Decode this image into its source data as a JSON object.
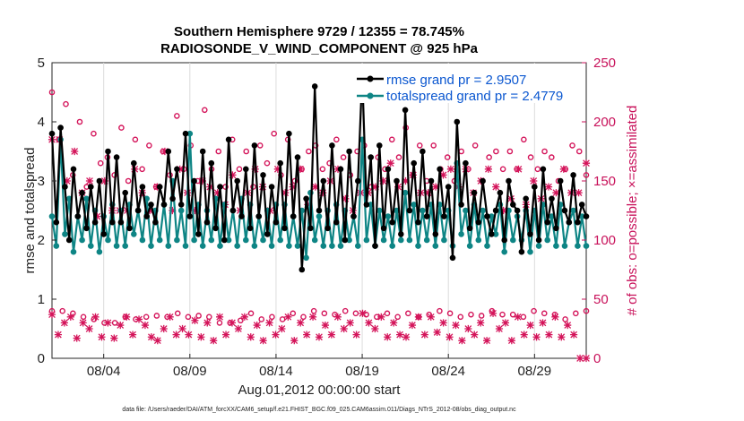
{
  "chart_data": {
    "type": "line",
    "title_line1": "Southern Hemisphere 9729 / 12355 = 78.745%",
    "title_line2": "RADIOSONDE_V_WIND_COMPONENT @ 925 hPa",
    "xlabel": "Aug.01,2012 00:00:00 start",
    "ylabel_left": "rmse and totalspread",
    "ylabel_right": "# of obs: o=possible; ×=assimilated",
    "footer": "data file: /Users/raeder/DAI/ATM_forcXX/CAM6_setup/f.e21.FHIST_BGC.f09_025.CAM6assim.011/Diags_NTrS_2012-08/obs_diag_output.nc",
    "xlim": [
      0,
      124
    ],
    "ylim_left": [
      0,
      5
    ],
    "ylim_right": [
      0,
      250
    ],
    "x_ticks": [
      {
        "x": 12,
        "label": "08/04"
      },
      {
        "x": 32,
        "label": "08/09"
      },
      {
        "x": 52,
        "label": "08/14"
      },
      {
        "x": 72,
        "label": "08/19"
      },
      {
        "x": 92,
        "label": "08/24"
      },
      {
        "x": 112,
        "label": "08/29"
      }
    ],
    "y_ticks_left": [
      "0",
      "1",
      "2",
      "3",
      "4",
      "5"
    ],
    "y_ticks_right": [
      "0",
      "50",
      "100",
      "150",
      "200",
      "250"
    ],
    "legend": [
      {
        "label": "rmse grand pr = 2.9507",
        "color": "#000000"
      },
      {
        "label": "totalspread grand pr = 2.4779",
        "color": "#0e8585"
      }
    ],
    "colors": {
      "rmse": "#000000",
      "spread": "#0e8585",
      "obs": "#d4145a"
    },
    "series": [
      {
        "name": "rmse",
        "values": [
          3.8,
          2.3,
          3.9,
          2.9,
          2.0,
          3.2,
          2.4,
          2.8,
          2.2,
          2.9,
          2.3,
          3.0,
          2.1,
          3.5,
          2.3,
          3.4,
          2.3,
          2.8,
          2.2,
          3.3,
          2.5,
          2.9,
          2.4,
          2.6,
          2.3,
          2.9,
          2.6,
          3.5,
          2.7,
          3.2,
          2.6,
          3.8,
          2.4,
          3.0,
          2.1,
          3.5,
          2.3,
          3.3,
          2.2,
          2.9,
          2.0,
          3.7,
          2.5,
          3.0,
          2.4,
          3.2,
          2.2,
          3.6,
          2.4,
          3.1,
          2.1,
          2.9,
          2.3,
          3.3,
          2.2,
          3.8,
          2.4,
          3.4,
          1.5,
          2.7,
          2.2,
          4.6,
          2.5,
          3.0,
          2.2,
          3.6,
          2.3,
          3.2,
          2.0,
          3.5,
          2.4,
          3.0,
          4.8,
          2.6,
          3.4,
          1.9,
          3.6,
          2.2,
          3.2,
          2.3,
          3.0,
          2.1,
          4.2,
          2.5,
          3.3,
          2.3,
          3.5,
          2.4,
          3.0,
          2.1,
          3.2,
          2.4,
          2.9,
          1.7,
          4.0,
          2.6,
          3.3,
          2.2,
          2.8,
          2.3,
          3.0,
          2.4,
          2.1,
          2.5,
          2.8,
          2.0,
          3.0,
          2.6,
          2.5,
          1.8,
          2.7,
          2.1,
          2.9,
          2.0,
          3.2,
          2.3,
          2.7,
          2.2,
          3.0,
          2.5,
          2.3,
          3.1,
          2.3,
          2.6,
          2.4
        ]
      },
      {
        "name": "totalspread",
        "values": [
          2.4,
          1.9,
          3.7,
          2.1,
          2.7,
          1.8,
          2.4,
          2.0,
          2.7,
          1.9,
          2.5,
          1.8,
          2.4,
          2.0,
          2.6,
          1.9,
          2.5,
          1.9,
          2.6,
          2.1,
          2.5,
          2.0,
          2.7,
          1.9,
          2.5,
          2.0,
          2.6,
          1.9,
          3.0,
          2.0,
          2.5,
          1.9,
          3.8,
          2.0,
          2.6,
          1.9,
          2.5,
          2.0,
          2.7,
          1.9,
          2.6,
          2.0,
          2.5,
          1.9,
          2.7,
          2.0,
          2.6,
          1.9,
          2.4,
          2.0,
          2.5,
          1.9,
          2.6,
          2.0,
          2.6,
          1.9,
          2.4,
          1.9,
          2.5,
          1.7,
          2.8,
          2.0,
          2.4,
          1.9,
          2.5,
          1.9,
          2.6,
          1.9,
          2.5,
          2.0,
          2.4,
          1.9,
          3.7,
          2.0,
          2.6,
          1.9,
          2.5,
          2.0,
          2.4,
          1.9,
          2.5,
          2.0,
          2.8,
          2.0,
          2.6,
          1.9,
          2.5,
          2.0,
          2.6,
          1.9,
          2.6,
          2.0,
          2.5,
          1.9,
          3.3,
          2.1,
          2.5,
          1.9,
          2.6,
          2.0,
          2.5,
          1.9,
          2.4,
          2.1,
          2.6,
          1.8,
          2.5,
          2.0,
          2.4,
          2.0,
          2.5,
          1.8,
          2.5,
          1.9,
          2.6,
          2.0,
          2.4,
          1.9,
          2.6,
          1.9,
          2.3,
          2.5,
          1.9,
          2.4,
          1.9
        ]
      },
      {
        "name": "obs_possible_peak",
        "values": [
          225,
          185,
          215,
          155,
          200,
          145,
          190,
          165,
          170,
          155,
          195,
          150,
          185,
          160,
          180,
          145,
          175,
          155,
          205,
          160,
          180,
          150,
          210,
          160,
          175,
          145,
          185,
          160,
          175,
          145,
          180,
          165,
          190,
          155,
          185,
          150,
          160,
          175,
          180,
          160,
          165,
          185,
          170,
          155,
          175,
          180,
          145,
          170,
          160,
          185,
          170,
          195,
          155,
          180,
          150,
          180,
          160,
          170,
          150,
          175,
          160,
          180,
          150,
          170,
          175,
          160,
          175,
          160,
          185,
          170,
          160,
          175,
          170,
          150,
          160,
          180,
          175,
          155
        ]
      },
      {
        "name": "obs_assimilated_peak",
        "values": [
          185,
          185,
          150,
          175,
          140,
          150,
          120,
          150,
          125,
          125,
          125,
          160,
          140,
          125,
          145,
          175,
          125,
          160,
          140,
          125,
          150,
          145,
          140,
          130,
          155,
          125,
          140,
          160,
          145,
          125,
          160,
          140,
          145,
          160,
          130,
          145,
          140,
          150,
          160,
          135,
          125,
          140,
          140,
          145,
          150,
          165,
          145,
          150,
          155,
          140,
          140,
          145,
          155,
          160,
          145,
          160,
          140,
          150,
          160,
          145,
          125,
          135,
          160,
          130,
          150,
          135,
          145,
          140,
          160,
          140,
          140,
          165
        ]
      },
      {
        "name": "obs_possible_low",
        "values": [
          40,
          40,
          38,
          35,
          33,
          30,
          30,
          35,
          33,
          35,
          36,
          35,
          38,
          35,
          36,
          35,
          30,
          30,
          32,
          38,
          33,
          35,
          33,
          38,
          35,
          40,
          38,
          37,
          40,
          38,
          37,
          35,
          38,
          35,
          38,
          35,
          37,
          40,
          38,
          35,
          37,
          36,
          40,
          37,
          37,
          35,
          40,
          38,
          37,
          33,
          38,
          40
        ]
      },
      {
        "name": "obs_assimilated_low",
        "values": [
          37,
          20,
          30,
          35,
          17,
          30,
          25,
          35,
          18,
          30,
          17,
          28,
          35,
          20,
          33,
          28,
          18,
          15,
          25,
          35,
          20,
          25,
          20,
          32,
          18,
          30,
          15,
          35,
          20,
          30,
          25,
          35,
          18,
          28,
          15,
          30,
          20,
          25,
          35,
          15,
          30,
          20,
          35,
          18,
          28,
          20,
          35,
          25,
          30,
          20,
          38,
          30,
          25,
          35,
          18,
          30,
          20,
          18,
          28,
          35,
          20,
          35,
          22,
          30,
          18,
          28,
          15,
          25,
          20,
          30,
          15,
          38,
          25,
          30,
          15,
          35,
          20,
          28,
          18,
          30,
          20,
          35,
          18,
          28,
          20,
          0,
          0
        ]
      }
    ]
  }
}
